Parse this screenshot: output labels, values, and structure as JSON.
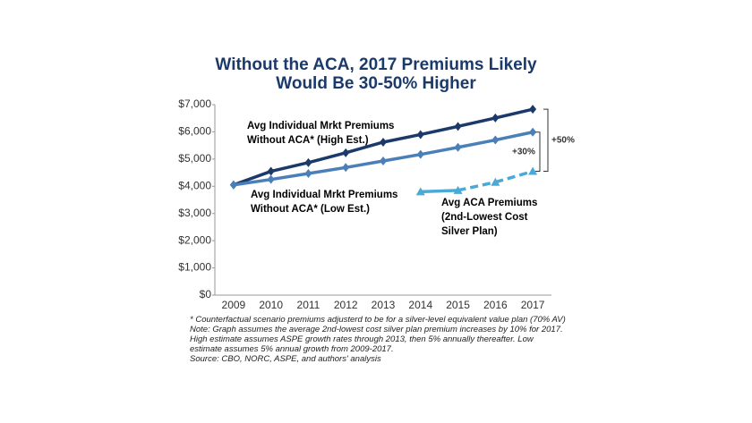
{
  "chart_data": {
    "type": "line",
    "title": "Without the ACA, 2017 Premiums Likely Would Be 30-50% Higher",
    "categories": [
      "2009",
      "2010",
      "2011",
      "2012",
      "2013",
      "2014",
      "2015",
      "2016",
      "2017"
    ],
    "series": [
      {
        "name": "Avg Individual Mrkt Premiums Without ACA* (High Est.)",
        "color": "#1b3a6a",
        "marker": "diamond",
        "values": [
          4050,
          4550,
          4870,
          5230,
          5620,
          5900,
          6200,
          6510,
          6830
        ]
      },
      {
        "name": "Avg Individual Mrkt Premiums Without ACA* (Low Est.)",
        "color": "#4a7fb8",
        "marker": "diamond",
        "values": [
          4050,
          4250,
          4470,
          4690,
          4930,
          5170,
          5430,
          5700,
          5990
        ]
      },
      {
        "name": "Avg ACA Premiums (2nd-Lowest Cost Silver Plan)",
        "color": "#4aa9d6",
        "marker": "triangle",
        "dashed_from": "2015",
        "values": [
          null,
          null,
          null,
          null,
          null,
          3800,
          3850,
          4150,
          4550
        ]
      }
    ],
    "ylim": [
      0,
      7000
    ],
    "yticks": [
      {
        "value": 0,
        "label": "$0"
      },
      {
        "value": 1000,
        "label": "$1,000"
      },
      {
        "value": 2000,
        "label": "$2,000"
      },
      {
        "value": 3000,
        "label": "$3,000"
      },
      {
        "value": 4000,
        "label": "$4,000"
      },
      {
        "value": 5000,
        "label": "$5,000"
      },
      {
        "value": 6000,
        "label": "$6,000"
      },
      {
        "value": 7000,
        "label": "$7,000"
      }
    ],
    "annotations": [
      "+50%",
      "+30%"
    ],
    "notes": [
      "* Counterfactual scenario premiums adjusterd to be for a silver-level equivalent value plan (70% AV)",
      "Note: Graph assumes the average 2nd-lowest cost silver plan premium increases by 10% for 2017. High estimate assumes ASPE growth rates through 2013, then 5% annually thereafter. Low estimate assumes 5% annual growth from 2009-2017.",
      "Source: CBO, NORC, ASPE, and authors' analysis"
    ]
  }
}
